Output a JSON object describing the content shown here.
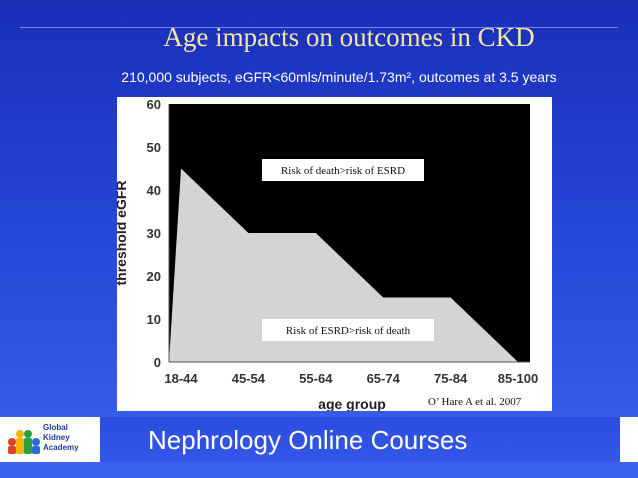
{
  "slide": {
    "title": "Age impacts on outcomes in CKD",
    "subtitle": "210,000 subjects,  eGFR<60mls/minute/1.73m², outcomes at 3.5 years",
    "citation": "O’ Hare A et al. 2007",
    "footer": "Nephrology Online Courses",
    "logo_text": "Global Kidney Academy",
    "colors": {
      "background": "#2545d6",
      "title": "#f3e7a2",
      "death_region": "#000000",
      "esrd_region": "#d4d4d4"
    }
  },
  "chart_data": {
    "type": "area",
    "xlabel": "age group",
    "ylabel": "threshold eGFR",
    "categories": [
      "18-44",
      "45-54",
      "55-64",
      "65-74",
      "75-84",
      "85-100"
    ],
    "y_ticks": [
      0,
      10,
      20,
      30,
      40,
      50,
      60
    ],
    "ylim": [
      0,
      60
    ],
    "threshold_egfr": [
      {
        "age": "18-44",
        "egfr": 45
      },
      {
        "age": "45-54",
        "egfr": 30
      },
      {
        "age": "55-64",
        "egfr": 30
      },
      {
        "age": "65-74",
        "egfr": 15
      },
      {
        "age": "75-84",
        "egfr": 15
      },
      {
        "age": "85-100",
        "egfr": 0
      }
    ],
    "region_labels": {
      "above": "Risk of death>risk of ESRD",
      "below": "Risk of ESRD>risk of death"
    },
    "grid": false
  }
}
